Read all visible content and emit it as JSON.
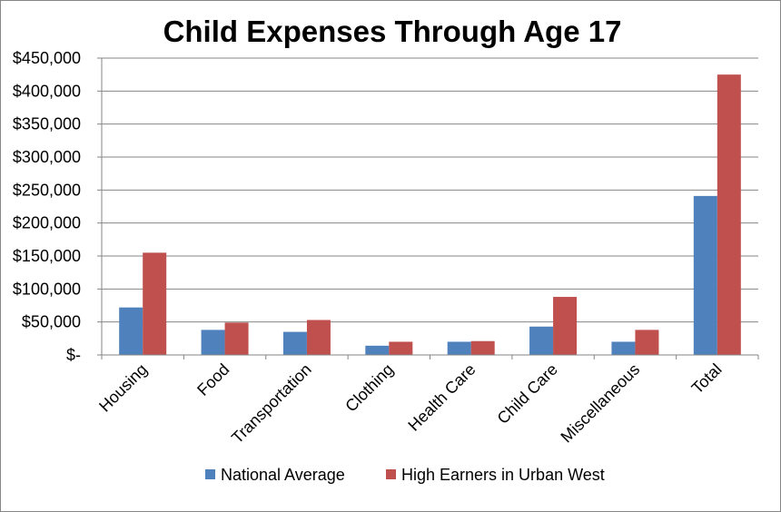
{
  "chart_data": {
    "type": "bar",
    "title": "Child Expenses Through Age 17",
    "xlabel": "",
    "ylabel": "",
    "ylim": [
      0,
      450000
    ],
    "yticks": [
      0,
      50000,
      100000,
      150000,
      200000,
      250000,
      300000,
      350000,
      400000,
      450000
    ],
    "ytick_labels": [
      "$-",
      "$50,000",
      "$100,000",
      "$150,000",
      "$200,000",
      "$250,000",
      "$300,000",
      "$350,000",
      "$400,000",
      "$450,000"
    ],
    "grid": true,
    "legend_position": "bottom",
    "categories": [
      "Housing",
      "Food",
      "Transportation",
      "Clothing",
      "Health Care",
      "Child Care",
      "Miscellaneous",
      "Total"
    ],
    "series": [
      {
        "name": "National Average",
        "color": "#4F81BD",
        "values": [
          72000,
          38000,
          35000,
          14000,
          20000,
          43000,
          20000,
          241000
        ]
      },
      {
        "name": "High Earners in Urban West",
        "color": "#C0504D",
        "values": [
          155000,
          49000,
          53000,
          20000,
          21000,
          88000,
          38000,
          425000
        ]
      }
    ]
  }
}
